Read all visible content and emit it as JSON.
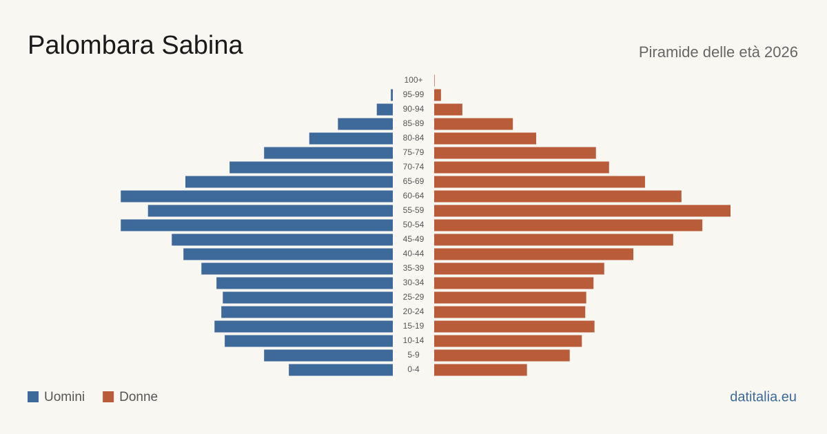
{
  "chart_data": {
    "type": "pyramid",
    "title": "Palombara Sabina",
    "subtitle": "Piramide delle età 2026",
    "source": "datitalia.eu",
    "categories": [
      "100+",
      "95-99",
      "90-94",
      "85-89",
      "80-84",
      "75-79",
      "70-74",
      "65-69",
      "60-64",
      "55-59",
      "50-54",
      "45-49",
      "40-44",
      "35-39",
      "30-34",
      "25-29",
      "20-24",
      "15-19",
      "10-14",
      "5-9",
      "0-4"
    ],
    "series": [
      {
        "name": "Uomini",
        "color": "#3d6a9b",
        "values": [
          0,
          4,
          33,
          113,
          172,
          265,
          336,
          427,
          560,
          504,
          560,
          455,
          431,
          394,
          363,
          350,
          353,
          367,
          346,
          265,
          214
        ]
      },
      {
        "name": "Donne",
        "color": "#b85c3a",
        "values": [
          1,
          14,
          58,
          162,
          210,
          333,
          360,
          434,
          509,
          610,
          552,
          492,
          410,
          350,
          328,
          313,
          311,
          330,
          304,
          279,
          191
        ]
      }
    ]
  }
}
